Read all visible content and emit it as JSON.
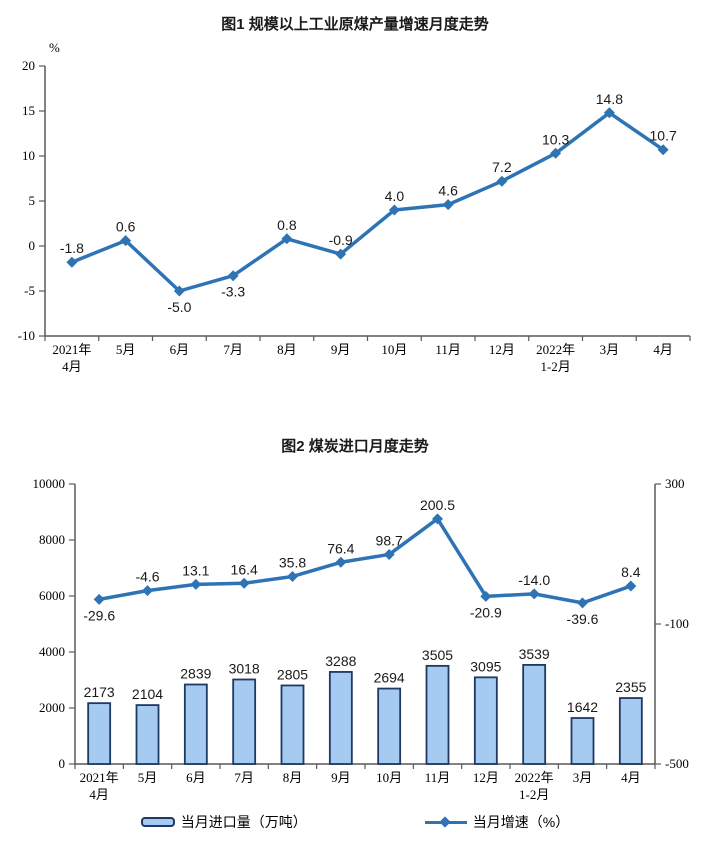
{
  "page": {
    "background": "#ffffff"
  },
  "colors": {
    "line": "#2E74B5",
    "bar_fill": "#A6CBF0",
    "bar_stroke": "#1F3864",
    "axis": "#595959",
    "text": "#000000"
  },
  "chart_data": [
    {
      "type": "line",
      "title": "图1 规模以上工业原煤产量增速月度走势",
      "ylabel": "%",
      "categories": [
        [
          "2021年",
          "4月"
        ],
        [
          "5月"
        ],
        [
          "6月"
        ],
        [
          "7月"
        ],
        [
          "8月"
        ],
        [
          "9月"
        ],
        [
          "10月"
        ],
        [
          "11月"
        ],
        [
          "12月"
        ],
        [
          "2022年",
          "1-2月"
        ],
        [
          "3月"
        ],
        [
          "4月"
        ]
      ],
      "values": [
        -1.8,
        0.6,
        -5.0,
        -3.3,
        0.8,
        -0.9,
        4.0,
        4.6,
        7.2,
        10.3,
        14.8,
        10.7
      ],
      "labels": [
        "-1.8",
        "0.6",
        "-5.0",
        "-3.3",
        "0.8",
        "-0.9",
        "4.0",
        "4.6",
        "7.2",
        "10.3",
        "14.8",
        "10.7"
      ],
      "label_positions": [
        "above",
        "above",
        "below",
        "below",
        "above",
        "above",
        "above",
        "above",
        "above",
        "above",
        "above",
        "above"
      ],
      "ylim": [
        -10,
        20
      ],
      "yticks": [
        20,
        15,
        10,
        5,
        0,
        -5,
        -10
      ],
      "grid": false
    },
    {
      "type": "bar+line",
      "title": "图2 煤炭进口月度走势",
      "categories": [
        [
          "2021年",
          "4月"
        ],
        [
          "5月"
        ],
        [
          "6月"
        ],
        [
          "7月"
        ],
        [
          "8月"
        ],
        [
          "9月"
        ],
        [
          "10月"
        ],
        [
          "11月"
        ],
        [
          "12月"
        ],
        [
          "2022年",
          "1-2月"
        ],
        [
          "3月"
        ],
        [
          "4月"
        ]
      ],
      "series": [
        {
          "name": "当月进口量（万吨）",
          "type": "bar",
          "axis": "left",
          "values": [
            2173,
            2104,
            2839,
            3018,
            2805,
            3288,
            2694,
            3505,
            3095,
            3539,
            1642,
            2355
          ],
          "labels": [
            "2173",
            "2104",
            "2839",
            "3018",
            "2805",
            "3288",
            "2694",
            "3505",
            "3095",
            "3539",
            "1642",
            "2355"
          ]
        },
        {
          "name": "当月增速（%）",
          "type": "line",
          "axis": "right",
          "values": [
            -29.6,
            -4.6,
            13.1,
            16.4,
            35.8,
            76.4,
            98.7,
            200.5,
            -20.9,
            -14.0,
            -39.6,
            8.4
          ],
          "labels": [
            "-29.6",
            "-4.6",
            "13.1",
            "16.4",
            "35.8",
            "76.4",
            "98.7",
            "200.5",
            "-20.9",
            "-14.0",
            "-39.6",
            "8.4"
          ],
          "label_positions": [
            "below",
            "above",
            "above",
            "above",
            "above",
            "above",
            "above",
            "above",
            "below",
            "above",
            "below",
            "above"
          ]
        }
      ],
      "left_ylim": [
        0,
        10000
      ],
      "left_yticks": [
        0,
        2000,
        4000,
        6000,
        8000,
        10000
      ],
      "right_ylim": [
        -500,
        300
      ],
      "right_yticks": [
        300,
        -100,
        -500
      ],
      "legend_position": "bottom",
      "grid": false
    }
  ]
}
